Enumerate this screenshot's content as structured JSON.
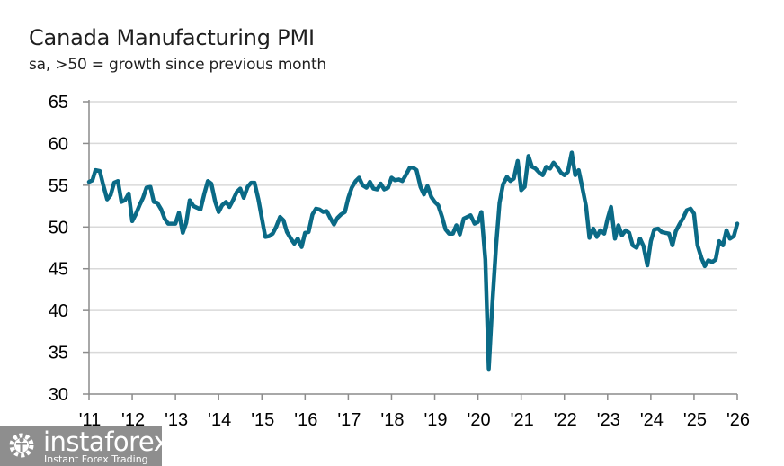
{
  "chart_data": {
    "type": "line",
    "title": "Canada Manufacturing PMI",
    "subtitle": "sa, >50 = growth since previous month",
    "xlabel": "",
    "ylabel": "",
    "ylim": [
      30,
      65
    ],
    "yticks": [
      30,
      35,
      40,
      45,
      50,
      55,
      60,
      65
    ],
    "xlim": [
      2011,
      2026
    ],
    "xticks": [
      {
        "value": 2011,
        "label": "'11"
      },
      {
        "value": 2012,
        "label": "'12"
      },
      {
        "value": 2013,
        "label": "'13"
      },
      {
        "value": 2014,
        "label": "'14"
      },
      {
        "value": 2015,
        "label": "'15"
      },
      {
        "value": 2016,
        "label": "'16"
      },
      {
        "value": 2017,
        "label": "'17"
      },
      {
        "value": 2018,
        "label": "'18"
      },
      {
        "value": 2019,
        "label": "'19"
      },
      {
        "value": 2020,
        "label": "'20"
      },
      {
        "value": 2021,
        "label": "'21"
      },
      {
        "value": 2022,
        "label": "'22"
      },
      {
        "value": 2023,
        "label": "'23"
      },
      {
        "value": 2024,
        "label": "'24"
      },
      {
        "value": 2025,
        "label": "'25"
      },
      {
        "value": 2026,
        "label": "'26"
      }
    ],
    "grid": "horizontal",
    "line_color": "#0a6a86",
    "series": [
      {
        "name": "Canada Manufacturing PMI",
        "x": [
          2011.0,
          2011.08,
          2011.15,
          2011.25,
          2011.33,
          2011.42,
          2011.5,
          2011.58,
          2011.67,
          2011.75,
          2011.83,
          2011.92,
          2012.0,
          2012.08,
          2012.17,
          2012.25,
          2012.33,
          2012.42,
          2012.5,
          2012.58,
          2012.67,
          2012.75,
          2012.83,
          2012.92,
          2013.0,
          2013.08,
          2013.17,
          2013.25,
          2013.33,
          2013.42,
          2013.5,
          2013.58,
          2013.67,
          2013.75,
          2013.83,
          2013.92,
          2014.0,
          2014.08,
          2014.17,
          2014.25,
          2014.33,
          2014.42,
          2014.5,
          2014.58,
          2014.67,
          2014.75,
          2014.83,
          2014.92,
          2015.0,
          2015.08,
          2015.17,
          2015.25,
          2015.33,
          2015.42,
          2015.5,
          2015.58,
          2015.67,
          2015.75,
          2015.83,
          2015.92,
          2016.0,
          2016.08,
          2016.17,
          2016.25,
          2016.33,
          2016.42,
          2016.5,
          2016.58,
          2016.67,
          2016.75,
          2016.83,
          2016.92,
          2017.0,
          2017.08,
          2017.17,
          2017.25,
          2017.33,
          2017.42,
          2017.5,
          2017.58,
          2017.67,
          2017.75,
          2017.83,
          2017.92,
          2018.0,
          2018.08,
          2018.17,
          2018.25,
          2018.33,
          2018.42,
          2018.5,
          2018.58,
          2018.67,
          2018.75,
          2018.83,
          2018.92,
          2019.0,
          2019.08,
          2019.17,
          2019.25,
          2019.33,
          2019.42,
          2019.5,
          2019.58,
          2019.67,
          2019.75,
          2019.83,
          2019.92,
          2020.0,
          2020.08,
          2020.17,
          2020.25,
          2020.33,
          2020.42,
          2020.5,
          2020.58,
          2020.67,
          2020.75,
          2020.83,
          2020.92,
          2021.0,
          2021.08,
          2021.17,
          2021.25,
          2021.33,
          2021.42,
          2021.5,
          2021.58,
          2021.67,
          2021.75,
          2021.83,
          2021.92,
          2022.0,
          2022.08,
          2022.17,
          2022.25,
          2022.33,
          2022.42,
          2022.5,
          2022.58,
          2022.67,
          2022.75,
          2022.83,
          2022.92,
          2023.0,
          2023.08,
          2023.17,
          2023.25,
          2023.33,
          2023.42,
          2023.5,
          2023.58,
          2023.67,
          2023.75,
          2023.83,
          2023.92,
          2024.0,
          2024.08,
          2024.17,
          2024.25,
          2024.33,
          2024.42,
          2024.5,
          2024.58,
          2024.67,
          2024.75,
          2024.83,
          2024.92,
          2025.0,
          2025.08,
          2025.17,
          2025.25,
          2025.33,
          2025.42,
          2025.5,
          2025.58,
          2025.67,
          2025.75,
          2025.83,
          2025.92,
          2026.0
        ],
        "values": [
          55.4,
          55.6,
          56.8,
          56.7,
          55.0,
          53.3,
          53.8,
          55.3,
          55.5,
          53.0,
          53.2,
          54.0,
          50.7,
          51.5,
          52.6,
          53.5,
          54.7,
          54.8,
          53.0,
          52.9,
          52.1,
          51.0,
          50.4,
          50.4,
          50.4,
          51.7,
          49.3,
          50.5,
          53.2,
          52.5,
          52.3,
          52.1,
          54.0,
          55.5,
          55.2,
          53.0,
          51.8,
          52.6,
          53.0,
          52.4,
          53.2,
          54.2,
          54.6,
          53.5,
          54.8,
          55.3,
          55.3,
          53.3,
          51.0,
          48.8,
          48.9,
          49.2,
          50.0,
          51.2,
          50.8,
          49.4,
          48.6,
          48.0,
          48.6,
          47.6,
          49.3,
          49.4,
          51.5,
          52.2,
          52.1,
          51.8,
          51.9,
          51.1,
          50.3,
          51.1,
          51.5,
          51.8,
          53.5,
          54.7,
          55.5,
          55.9,
          55.0,
          54.7,
          55.4,
          54.6,
          54.5,
          55.2,
          54.5,
          54.7,
          55.9,
          55.6,
          55.7,
          55.5,
          56.2,
          57.1,
          57.1,
          56.8,
          54.8,
          53.9,
          54.9,
          53.6,
          53.0,
          52.6,
          51.2,
          49.7,
          49.2,
          49.2,
          50.2,
          49.1,
          51.0,
          51.2,
          51.4,
          50.4,
          50.6,
          51.8,
          46.1,
          33.0,
          40.6,
          47.8,
          52.9,
          55.1,
          56.0,
          55.5,
          55.8,
          57.9,
          54.4,
          54.8,
          58.5,
          57.2,
          57.0,
          56.5,
          56.2,
          57.2,
          57.0,
          57.7,
          57.2,
          56.5,
          56.2,
          56.6,
          58.9,
          56.2,
          56.8,
          54.6,
          52.5,
          48.7,
          49.8,
          48.8,
          49.6,
          49.2,
          51.0,
          52.4,
          48.6,
          50.2,
          49.0,
          49.6,
          49.3,
          47.8,
          47.5,
          48.6,
          47.7,
          45.4,
          48.3,
          49.7,
          49.8,
          49.4,
          49.3,
          49.2,
          47.8,
          49.5,
          50.4,
          51.1,
          52.0,
          52.2,
          51.6,
          47.8,
          46.3,
          45.3,
          46.0,
          45.8,
          46.1,
          48.3,
          47.8,
          49.6,
          48.6,
          48.9,
          50.4
        ]
      }
    ]
  },
  "watermark": {
    "brand": "instaforex",
    "tagline": "Instant Forex Trading"
  }
}
